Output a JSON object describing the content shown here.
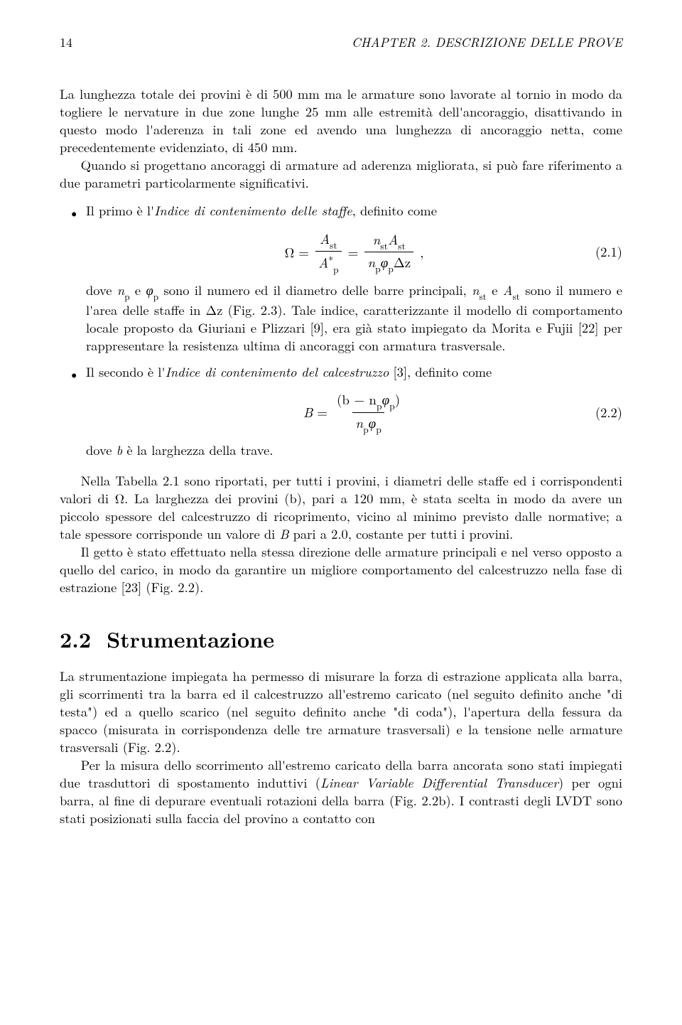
{
  "header": {
    "page_number": "14",
    "running_head": "CHAPTER 2. DESCRIZIONE DELLE PROVE"
  },
  "para_intro_1": "La lunghezza totale dei provini è di 500 mm ma le armature sono lavorate al tornio in modo da togliere le nervature in due zone lunghe 25 mm alle estremità dell'ancoraggio, disattivando in questo modo l'aderenza in tali zone ed avendo una lunghezza di ancoraggio netta, come precedentemente evidenziato, di 450 mm.",
  "para_intro_2": "Quando si progettano ancoraggi di armature ad aderenza migliorata, si può fare riferimento a due parametri particolarmente significativi.",
  "bullet1_lead_a": "Il primo è l'",
  "bullet1_lead_ital": "Indice di contenimento delle staffe",
  "bullet1_lead_b": ", definito come",
  "eq1": {
    "lhs_var": "Ω",
    "frac1_num_a": "A",
    "frac1_num_sub": "st",
    "frac1_den_a": "A",
    "frac1_den_sup": "∗",
    "frac1_den_sub": "p",
    "frac2_num_a": "n",
    "frac2_num_sub1": "st",
    "frac2_num_b": "A",
    "frac2_num_sub2": "st",
    "frac2_den_a": "n",
    "frac2_den_sub1": "p",
    "frac2_den_b": "φ",
    "frac2_den_sub2": "p",
    "frac2_den_c": "Δz",
    "number": "(2.1)"
  },
  "bullet1_after_a": "dove ",
  "bullet1_after_np": "n",
  "bullet1_after_np_sub": "p",
  "bullet1_after_b": " e ",
  "bullet1_after_phi": "φ",
  "bullet1_after_phi_sub": "p",
  "bullet1_after_c": " sono il numero ed il diametro delle barre principali, ",
  "bullet1_after_nst": "n",
  "bullet1_after_nst_sub": "st",
  "bullet1_after_d": " e ",
  "bullet1_after_ast": "A",
  "bullet1_after_ast_sub": "st",
  "bullet1_after_e": " sono il numero e l'area delle staffe in Δz (Fig. 2.3). Tale indice, caratterizzante il modello di comportamento locale proposto da Giuriani e Plizzari [9], era già stato impiegato da Morita e Fujii [22] per rappresentare la resistenza ultima di ancoraggi con armatura trasversale.",
  "bullet2_lead_a": "Il secondo è l'",
  "bullet2_lead_ital": "Indice di contenimento del calcestruzzo",
  "bullet2_lead_b": " [3], definito come",
  "eq2": {
    "lhs_var": "B",
    "num_a": "(b − n",
    "num_sub1": "p",
    "num_b": "φ",
    "num_sub2": "p",
    "num_c": ")",
    "den_a": "n",
    "den_sub1": "p",
    "den_b": "φ",
    "den_sub2": "p",
    "number": "(2.2)"
  },
  "bullet2_after_a": "dove ",
  "bullet2_after_b_var": "b",
  "bullet2_after_b": " è la larghezza della trave.",
  "para_table_a": "Nella Tabella 2.1 sono riportati, per tutti i provini, i diametri delle staffe ed i corrispondenti valori di Ω. La larghezza dei provini (b), pari a 120 mm, è stata scelta in modo da avere un piccolo spessore del calcestruzzo di ricoprimento, vicino al minimo previsto dalle normative; a tale spessore corrisponde un valore di ",
  "para_table_bvar": "B",
  "para_table_b": " pari a 2.0, costante per tutti i provini.",
  "para_getto": "Il getto è stato effettuato nella stessa direzione delle armature principali e nel verso opposto a quello del carico, in modo da garantire un migliore comportamento del calcestruzzo nella fase di estrazione [23] (Fig. 2.2).",
  "section": {
    "number": "2.2",
    "title": "Strumentazione"
  },
  "para_strum_1": "La strumentazione impiegata ha permesso di misurare la forza di estrazione applicata alla barra, gli scorrimenti tra la barra ed il calcestruzzo all'estremo caricato (nel seguito definito anche \"di testa\") ed a quello scarico (nel seguito definito anche \"di coda\"), l'apertura della fessura da spacco (misurata in corrispondenza delle tre armature trasversali) e la tensione nelle armature trasversali (Fig. 2.2).",
  "para_strum_2a": "Per la misura dello scorrimento all'estremo caricato della barra ancorata sono stati impiegati due trasduttori di spostamento induttivi (",
  "para_strum_2_ital": "Linear Variable Differential Transducer",
  "para_strum_2b": ") per ogni barra, al fine di depurare eventuali rotazioni della barra (Fig. 2.2b). I contrasti degli LVDT sono stati posizionati sulla faccia del provino a contatto con"
}
